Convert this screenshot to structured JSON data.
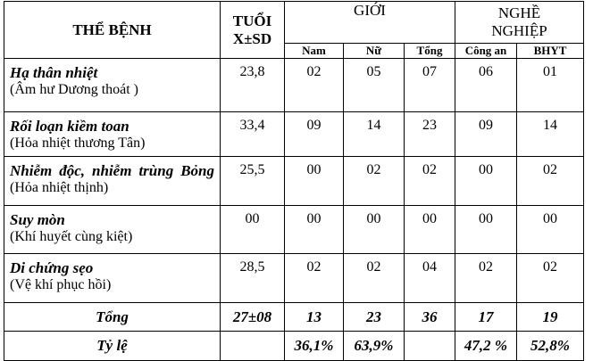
{
  "table": {
    "header": {
      "disease": "THỂ BỆNH",
      "age": [
        "TUỔI",
        "X±SD"
      ],
      "gender": "GIỚI",
      "occupation": [
        "NGHỀ",
        "NGHIỆP"
      ],
      "subheaders": [
        "Nam",
        "Nữ",
        "Tổng",
        "Công an",
        "BHYT"
      ]
    },
    "rows": [
      {
        "name": "Hạ thân nhiệt",
        "note": "(Âm hư Dương thoát )",
        "values": [
          "23,8",
          "02",
          "05",
          "07",
          "06",
          "01"
        ]
      },
      {
        "name": "Rối loạn kiềm toan",
        "note": "(Hỏa nhiệt thương Tân)",
        "values": [
          "33,4",
          "09",
          "14",
          "23",
          "09",
          "14"
        ]
      },
      {
        "name": "Nhiễm độc, nhiễm trùng Bỏng",
        "note": "(Hỏa nhiệt thịnh)",
        "values": [
          "25,5",
          "00",
          "02",
          "02",
          "00",
          "02"
        ]
      },
      {
        "name": "Suy mòn",
        "note": "(Khí huyết cùng kiệt)",
        "values": [
          "00",
          "00",
          "00",
          "00",
          "00",
          "00"
        ]
      },
      {
        "name": "Di chứng sẹo",
        "note": "(Vệ khí phục hồi)",
        "values": [
          "28,5",
          "02",
          "02",
          "04",
          "02",
          "02"
        ]
      }
    ],
    "total": {
      "label": "Tổng",
      "values": [
        "27±08",
        "13",
        "23",
        "36",
        "17",
        "19"
      ]
    },
    "ratio": {
      "label": "Tỷ lệ",
      "male": "36,1%",
      "female": "63,9%",
      "police": "47,2 %",
      "insurance": "52,8%"
    }
  }
}
